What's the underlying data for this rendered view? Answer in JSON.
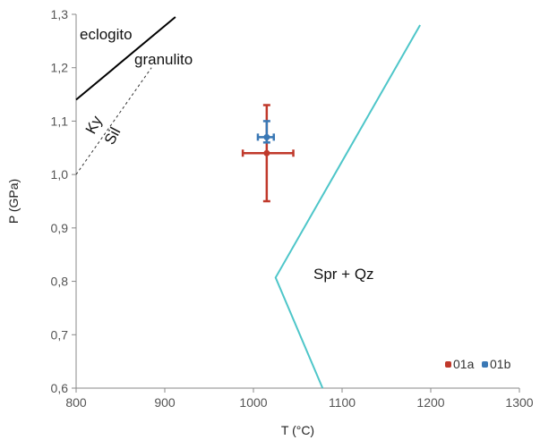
{
  "chart_data": {
    "type": "scatter",
    "xlabel": "T (°C)",
    "ylabel": "P (GPa)",
    "xlim": [
      800,
      1300
    ],
    "ylim": [
      0.6,
      1.3
    ],
    "x_ticks": [
      "800",
      "900",
      "1000",
      "1100",
      "1200",
      "1300"
    ],
    "y_ticks": [
      "0,6",
      "0,7",
      "0,8",
      "0,9",
      "1,0",
      "1,1",
      "1,2",
      "1,3"
    ],
    "grid": false,
    "legend_position": "bottom-right",
    "series": [
      {
        "name": "01a",
        "color": "#c0392b",
        "points": [
          {
            "x": 1015,
            "y": 1.04,
            "xerr": [
              988,
              1045
            ],
            "yerr": [
              0.95,
              1.13
            ]
          }
        ]
      },
      {
        "name": "01b",
        "color": "#3a78b5",
        "points": [
          {
            "x": 1015,
            "y": 1.07,
            "xerr": [
              1005,
              1023
            ],
            "yerr": [
              1.06,
              1.1
            ]
          }
        ]
      }
    ],
    "lines": [
      {
        "id": "eclogite-granulite",
        "style": "solid",
        "color": "#000000",
        "points": [
          [
            800,
            1.14
          ],
          [
            912,
            1.295
          ]
        ]
      },
      {
        "id": "ky-sil",
        "style": "dashed",
        "color": "#333333",
        "points": [
          [
            800,
            1.0
          ],
          [
            885,
            1.2
          ]
        ]
      },
      {
        "id": "spr-qz",
        "style": "solid",
        "color": "#4ec6c9",
        "points": [
          [
            1188,
            1.28
          ],
          [
            1025,
            0.807
          ],
          [
            1078,
            0.6
          ]
        ]
      }
    ],
    "annotations": {
      "eclogito": "eclogito",
      "granulito": "granulito",
      "ky": "Ky",
      "sil": "Sil",
      "spr_qz": "Spr + Qz"
    }
  }
}
